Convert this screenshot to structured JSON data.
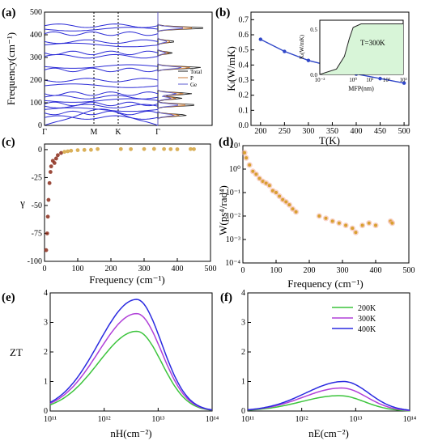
{
  "panels": {
    "a": {
      "label": "(a)",
      "ylabel": "Frequency(cm⁻¹)",
      "yticks": [
        "0",
        "100",
        "200",
        "300",
        "400",
        "500"
      ],
      "kpoints": [
        "Γ",
        "M",
        "K",
        "Γ"
      ],
      "legend": [
        "Total",
        "P",
        "Ge"
      ]
    },
    "b": {
      "label": "(b)",
      "ylabel": "Kₗ(W/mK)",
      "xlabel": "T(K)",
      "yticks": [
        "0.0",
        "0.1",
        "0.2",
        "0.3",
        "0.4",
        "0.5",
        "0.6",
        "0.7"
      ],
      "xticks": [
        "200",
        "250",
        "300",
        "350",
        "400",
        "450",
        "500"
      ],
      "inset": {
        "ylabel": "Kₗ(W/mK)",
        "xlabel": "MFP(nm)",
        "note": "T=300K",
        "yticks": [
          "0.0",
          "0.5"
        ],
        "xticks": [
          "10⁻²",
          "10⁰",
          "10¹",
          "10²",
          "10³"
        ]
      }
    },
    "c": {
      "label": "(c)",
      "ylabel": "γ",
      "xlabel": "Frequency (cm⁻¹)",
      "yticks": [
        "0",
        "-25",
        "-50",
        "-75",
        "-100"
      ],
      "xticks": [
        "0",
        "100",
        "200",
        "300",
        "400",
        "500"
      ]
    },
    "d": {
      "label": "(d)",
      "ylabel": "W(ps⁴/rad⁴)",
      "xlabel": "Frequency (cm⁻¹)",
      "yticks": [
        "10¹",
        "10⁰",
        "10⁻¹",
        "10⁻²",
        "10⁻³",
        "10⁻⁴"
      ],
      "xticks": [
        "0",
        "100",
        "200",
        "300",
        "400",
        "500"
      ]
    },
    "e": {
      "label": "(e)",
      "ylabel": "ZT",
      "xlabel": "nH(cm⁻²)",
      "yticks": [
        "0",
        "1",
        "2",
        "3",
        "4"
      ],
      "xticks": [
        "10¹¹",
        "10¹²",
        "10¹³",
        "10¹⁴"
      ]
    },
    "f": {
      "label": "(f)",
      "xlabel": "nE(cm⁻²)",
      "yticks": [
        "0",
        "1",
        "2",
        "3",
        "4"
      ],
      "xticks": [
        "10¹¹",
        "10¹²",
        "10¹³",
        "10¹⁴"
      ],
      "legend": [
        "200K",
        "300K",
        "400K"
      ]
    }
  },
  "colors": {
    "band": "#2b2bd6",
    "total": "#222222",
    "P": "#c87a3a",
    "Ge": "#5a5ad0",
    "kappa": "#3047c8",
    "scatter_c": "#d4a23c",
    "scatter_c_low": "#8b2c1a",
    "scatter_d": "#d8a030",
    "scatter_d_glow": "#f5b5a5",
    "T200": "#3cc43c",
    "T300": "#b040d8",
    "T400": "#2a2ae0",
    "inset_fill": "#d8f5d8"
  },
  "chart_data": [
    {
      "panel": "a",
      "type": "line",
      "title": "",
      "xlabel": "",
      "ylabel": "Frequency(cm-1)",
      "ylim": [
        0,
        500
      ],
      "x_categories": [
        "Γ",
        "M",
        "K",
        "Γ"
      ],
      "band_levels": [
        0,
        35,
        55,
        70,
        85,
        95,
        110,
        125,
        140,
        175,
        200,
        245,
        260,
        305,
        320,
        355,
        370,
        405,
        425,
        440
      ],
      "dos_peaks": [
        [
          45,
          0.6
        ],
        [
          90,
          0.8
        ],
        [
          120,
          0.5
        ],
        [
          140,
          0.7
        ],
        [
          255,
          0.9
        ],
        [
          320,
          0.3
        ],
        [
          370,
          0.35
        ],
        [
          430,
          1.0
        ]
      ]
    },
    {
      "panel": "b",
      "type": "line",
      "xlabel": "T(K)",
      "ylabel": "KL(W/mK)",
      "xlim": [
        180,
        510
      ],
      "ylim": [
        0,
        0.75
      ],
      "series": [
        {
          "x": [
            200,
            250,
            300,
            350,
            400,
            450,
            500
          ],
          "values": [
            0.57,
            0.49,
            0.43,
            0.39,
            0.34,
            0.31,
            0.28
          ]
        }
      ],
      "inset": {
        "type": "line",
        "xlabel": "MFP(nm)",
        "ylabel": "KL(W/mK)",
        "xlog": true,
        "x": [
          0.01,
          0.1,
          0.3,
          0.6,
          1,
          3,
          10,
          100,
          1000
        ],
        "values": [
          0.0,
          0.03,
          0.1,
          0.2,
          0.26,
          0.28,
          0.28,
          0.28,
          0.28
        ],
        "ylim": [
          0,
          0.3
        ]
      }
    },
    {
      "panel": "c",
      "type": "scatter",
      "xlabel": "Frequency (cm-1)",
      "ylabel": "γ",
      "xlim": [
        0,
        500
      ],
      "ylim": [
        -100,
        5
      ],
      "series": [
        {
          "x": [
            5,
            8,
            10,
            12,
            15,
            18,
            20,
            25,
            30,
            35,
            40,
            50,
            60,
            70,
            80,
            100,
            120,
            140,
            160,
            230,
            260,
            300,
            330,
            360,
            380,
            400,
            440,
            450
          ],
          "values": [
            -90,
            -75,
            -60,
            -45,
            -30,
            -20,
            -15,
            -10,
            -12,
            -8,
            -5,
            -3,
            -2,
            -1.5,
            -1,
            -0.5,
            -0.3,
            -0.2,
            0.5,
            0.5,
            0.4,
            0.5,
            0.6,
            0.5,
            0.4,
            0.3,
            0.5,
            0.4
          ]
        }
      ]
    },
    {
      "panel": "d",
      "type": "scatter",
      "xlabel": "Frequency (cm-1)",
      "ylabel": "W(ps4/rad4)",
      "ylog": true,
      "xlim": [
        0,
        500
      ],
      "ylim": [
        0.0001,
        10
      ],
      "series": [
        {
          "x": [
            5,
            10,
            20,
            30,
            40,
            50,
            60,
            70,
            80,
            90,
            100,
            110,
            120,
            130,
            140,
            150,
            160,
            230,
            250,
            270,
            290,
            310,
            330,
            340,
            360,
            380,
            400,
            445,
            450
          ],
          "values": [
            5,
            3,
            1.5,
            0.8,
            0.6,
            0.4,
            0.3,
            0.25,
            0.2,
            0.12,
            0.1,
            0.07,
            0.05,
            0.04,
            0.03,
            0.02,
            0.015,
            0.01,
            0.008,
            0.006,
            0.005,
            0.004,
            0.003,
            0.002,
            0.004,
            0.005,
            0.004,
            0.006,
            0.005
          ]
        }
      ]
    },
    {
      "panel": "e",
      "type": "line",
      "xlabel": "nH(cm-2)",
      "ylabel": "ZT",
      "xlog": true,
      "xlim": [
        100000000000.0,
        100000000000000.0
      ],
      "ylim": [
        0,
        4
      ],
      "series": [
        {
          "name": "200K",
          "peak": 2.7,
          "peak_x": 4000000000000.0
        },
        {
          "name": "300K",
          "peak": 3.3,
          "peak_x": 4000000000000.0
        },
        {
          "name": "400K",
          "peak": 3.78,
          "peak_x": 4000000000000.0
        }
      ]
    },
    {
      "panel": "f",
      "type": "line",
      "xlabel": "nE(cm-2)",
      "xlog": true,
      "xlim": [
        100000000000.0,
        100000000000000.0
      ],
      "ylim": [
        0,
        4
      ],
      "series": [
        {
          "name": "200K",
          "peak": 0.52,
          "peak_x": 5000000000000.0
        },
        {
          "name": "300K",
          "peak": 0.78,
          "peak_x": 5500000000000.0
        },
        {
          "name": "400K",
          "peak": 1.0,
          "peak_x": 6000000000000.0
        }
      ]
    }
  ]
}
